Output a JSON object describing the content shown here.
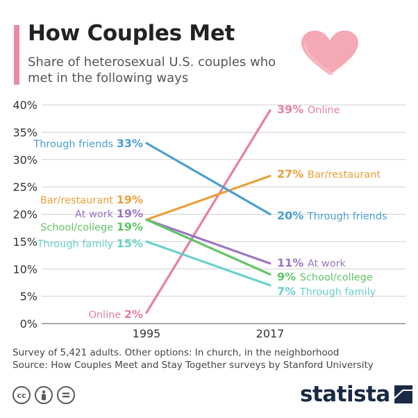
{
  "title": "How Couples Met",
  "subtitle": "Share of heterosexual U.S. couples who met in the following ways",
  "notes": {
    "line1": "Survey of 5,421 adults. Other options: In church, in the neighborhood",
    "line2": "Source: How Couples Meet and Stay Together surveys by Stanford University"
  },
  "brand": {
    "name": "statista"
  },
  "license_icons": [
    "cc-icon",
    "attribution-icon",
    "no-derivatives-icon"
  ],
  "colors": {
    "accent": "#e98ca3",
    "online": "#e67fa0",
    "bar_restaurant": "#ea9f3a",
    "through_friends": "#4a9fd0",
    "at_work": "#9a76c2",
    "school_college": "#5fc567",
    "through_family": "#68d1cb"
  },
  "chart_data": {
    "type": "line",
    "title": "How Couples Met",
    "subtitle": "Share of heterosexual U.S. couples who met in the following ways",
    "x": [
      "1995",
      "2017"
    ],
    "ylim": [
      0,
      40
    ],
    "yticks": [
      "0%",
      "5%",
      "10%",
      "15%",
      "20%",
      "25%",
      "30%",
      "35%",
      "40%"
    ],
    "grid": true,
    "series": [
      {
        "name": "Online",
        "values": [
          2,
          39
        ],
        "color": "#e67fa0",
        "label_left": "Online",
        "label_right": "Online",
        "v_left": "2%",
        "v_right": "39%"
      },
      {
        "name": "Bar/restaurant",
        "values": [
          19,
          27
        ],
        "color": "#ea9f3a",
        "label_left": "Bar/restaurant",
        "label_right": "Bar/restaurant",
        "v_left": "19%",
        "v_right": "27%"
      },
      {
        "name": "Through friends",
        "values": [
          33,
          20
        ],
        "color": "#4a9fd0",
        "label_left": "Through friends",
        "label_right": "Through friends",
        "v_left": "33%",
        "v_right": "20%"
      },
      {
        "name": "At work",
        "values": [
          19,
          11
        ],
        "color": "#9a76c2",
        "label_left": "At work",
        "label_right": "At work",
        "v_left": "19%",
        "v_right": "11%"
      },
      {
        "name": "School/college",
        "values": [
          19,
          9
        ],
        "color": "#5fc567",
        "label_left": "School/college",
        "label_right": "School/college",
        "v_left": "19%",
        "v_right": "9%"
      },
      {
        "name": "Through family",
        "values": [
          15,
          7
        ],
        "color": "#68d1cb",
        "label_left": "Through family",
        "label_right": "Through family",
        "v_left": "15%",
        "v_right": "7%"
      }
    ]
  }
}
